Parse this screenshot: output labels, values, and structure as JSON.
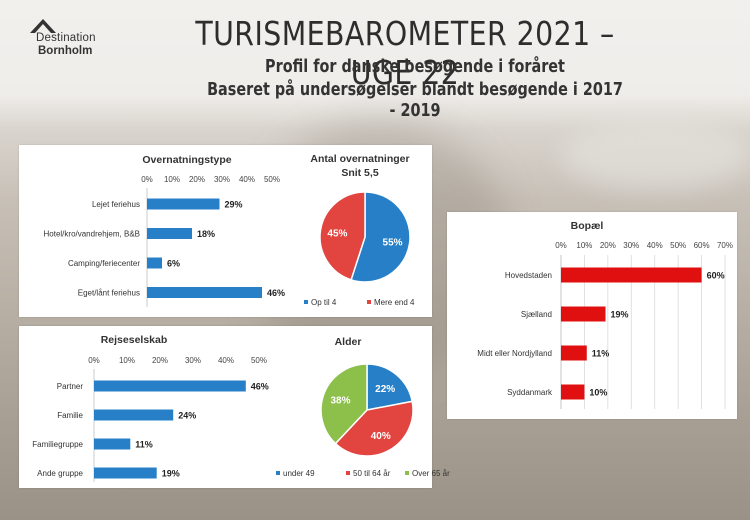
{
  "header": {
    "logo_line1": "Destination",
    "logo_line2": "Bornholm",
    "title": "TURISMEBAROMETER 2021 – UGE 22",
    "subtitle1": "Profil for danske besøgende i foråret",
    "subtitle2": "Baseret på undersøgelser blandt besøgende i 2017 - 2019"
  },
  "colors": {
    "blue": "#2780c7",
    "red": "#e2443f",
    "green": "#8cc04a",
    "bopael_red": "#e01010"
  },
  "chart_data": [
    {
      "id": "overnatning",
      "type": "bar",
      "title": "Overnatningstype",
      "categories": [
        "Lejet feriehus",
        "Hotel/kro/vandrehjem, B&B",
        "Camping/feriecenter",
        "Eget/lånt feriehus"
      ],
      "values": [
        29,
        18,
        6,
        46
      ],
      "value_labels": [
        "29%",
        "18%",
        "6%",
        "46%"
      ],
      "xlim": [
        0,
        50
      ],
      "xticks": [
        "0%",
        "10%",
        "20%",
        "30%",
        "40%",
        "50%"
      ]
    },
    {
      "id": "antal",
      "type": "pie",
      "title": "Antal overnatninger",
      "subtitle": "Snit 5,5",
      "labels": [
        "Op til 4",
        "Mere end 4"
      ],
      "values": [
        55,
        45
      ],
      "value_labels": [
        "55%",
        "45%"
      ]
    },
    {
      "id": "rejseselskab",
      "type": "bar",
      "title": "Rejseselskab",
      "categories": [
        "Partner",
        "Familie",
        "Familiegruppe",
        "Ande gruppe"
      ],
      "values": [
        46,
        24,
        11,
        19
      ],
      "value_labels": [
        "46%",
        "24%",
        "11%",
        "19%"
      ],
      "xlim": [
        0,
        50
      ],
      "xticks": [
        "0%",
        "10%",
        "20%",
        "30%",
        "40%",
        "50%"
      ]
    },
    {
      "id": "alder",
      "type": "pie",
      "title": "Alder",
      "labels": [
        "under 49",
        "50 til 64 år",
        "Over 65 år"
      ],
      "values": [
        22,
        40,
        38
      ],
      "value_labels": [
        "22%",
        "40%",
        "38%"
      ]
    },
    {
      "id": "bopael",
      "type": "bar",
      "title": "Bopæl",
      "categories": [
        "Hovedstaden",
        "Sjælland",
        "Midt eller Nordjylland",
        "Syddanmark"
      ],
      "values": [
        60,
        19,
        11,
        10
      ],
      "value_labels": [
        "60%",
        "19%",
        "11%",
        "10%"
      ],
      "xlim": [
        0,
        70
      ],
      "xticks": [
        "0%",
        "10%",
        "20%",
        "30%",
        "40%",
        "50%",
        "60%",
        "70%"
      ]
    }
  ]
}
